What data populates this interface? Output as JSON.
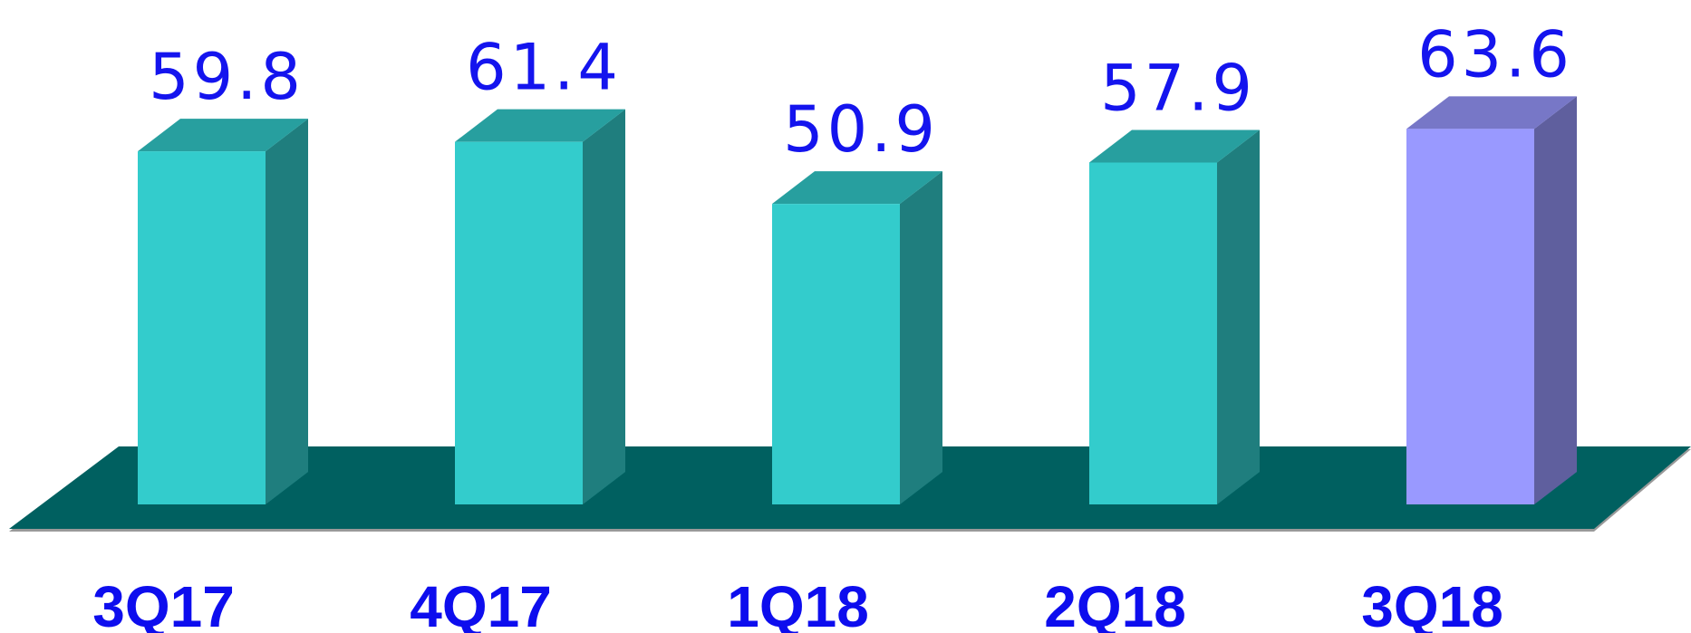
{
  "chart_data": {
    "type": "bar3d",
    "categories": [
      "3Q17",
      "4Q17",
      "1Q18",
      "2Q18",
      "3Q18"
    ],
    "values": [
      59.8,
      61.4,
      50.9,
      57.9,
      63.6
    ],
    "colors": [
      "#33cccc",
      "#33cccc",
      "#33cccc",
      "#33cccc",
      "#9999ff"
    ]
  }
}
